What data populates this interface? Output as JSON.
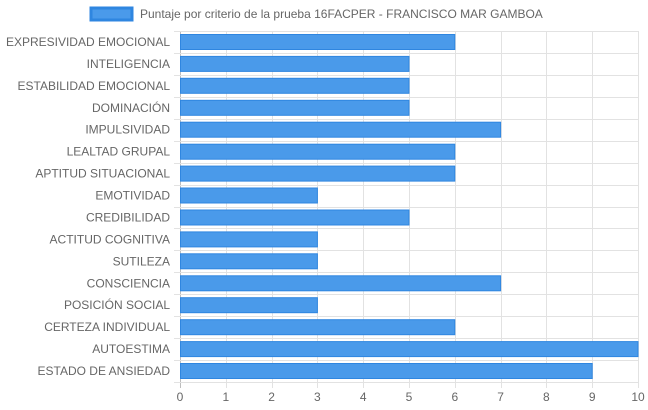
{
  "chart_data": {
    "type": "bar",
    "orientation": "horizontal",
    "categories": [
      "EXPRESIVIDAD EMOCIONAL",
      "INTELIGENCIA",
      "ESTABILIDAD EMOCIONAL",
      "DOMINACIÓN",
      "IMPULSIVIDAD",
      "LEALTAD GRUPAL",
      "APTITUD SITUACIONAL",
      "EMOTIVIDAD",
      "CREDIBILIDAD",
      "ACTITUD COGNITIVA",
      "SUTILEZA",
      "CONSCIENCIA",
      "POSICIÓN SOCIAL",
      "CERTEZA INDIVIDUAL",
      "AUTOESTIMA",
      "ESTADO DE ANSIEDAD"
    ],
    "series": [
      {
        "name": "Puntaje por criterio de la prueba 16FACPER - FRANCISCO MAR GAMBOA",
        "values": [
          6,
          5,
          5,
          5,
          7,
          6,
          6,
          3,
          5,
          3,
          3,
          7,
          3,
          6,
          10,
          9
        ]
      }
    ],
    "xlim": [
      0,
      10
    ],
    "xticks": [
      "0",
      "1",
      "2",
      "3",
      "4",
      "5",
      "6",
      "7",
      "8",
      "9",
      "10"
    ],
    "grid": true,
    "legend_position": "top",
    "colors": {
      "bar_fill": "#4a9aea",
      "bar_stroke": "#2f86e0",
      "grid": "#e2e2e2",
      "axis": "#bdbdbd",
      "text": "#666666"
    }
  }
}
